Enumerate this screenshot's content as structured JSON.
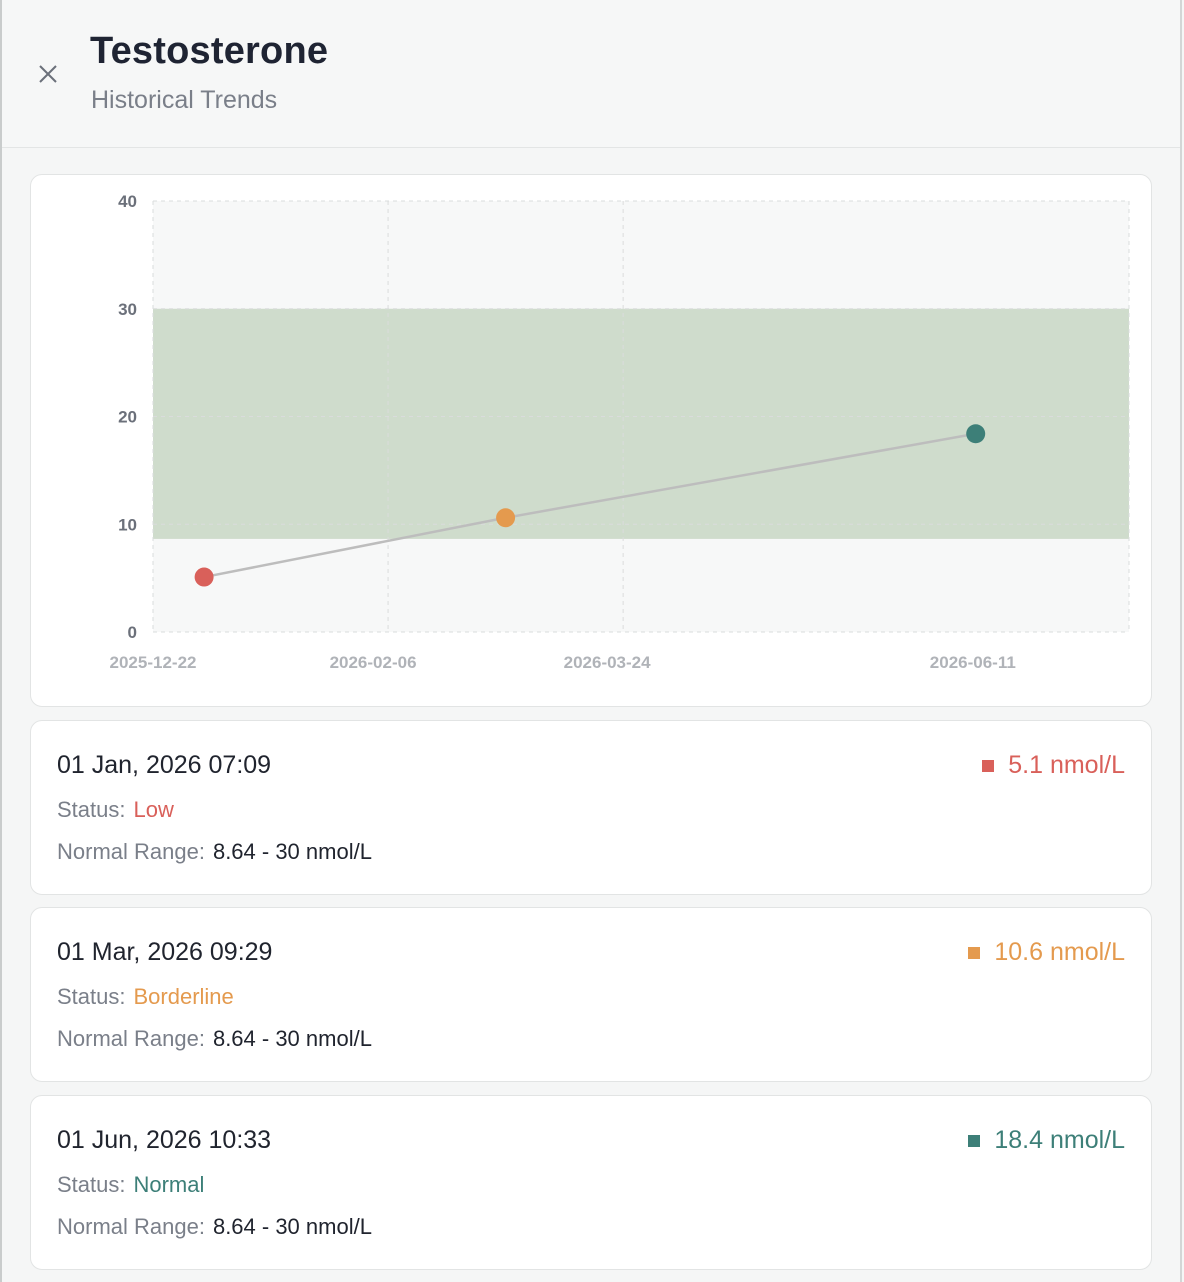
{
  "header": {
    "title": "Testosterone",
    "subtitle": "Historical Trends"
  },
  "colors": {
    "low": "#d9605a",
    "borderline": "#e49a4e",
    "normal": "#3d7f78",
    "normal_band": "#cfdccc",
    "line": "#bdbdbd"
  },
  "chart_data": {
    "type": "line",
    "ylim": [
      0,
      40
    ],
    "yticks": [
      0,
      10,
      20,
      30,
      40
    ],
    "xlim": [
      "2025-12-22",
      "2026-07-01"
    ],
    "xticks": [
      "2025-12-22",
      "2026-02-06",
      "2026-03-24",
      "2026-06-11"
    ],
    "normal_range": [
      8.64,
      30
    ],
    "grid": true,
    "points": [
      {
        "x": "2026-01-01",
        "y": 5.1,
        "status": "low"
      },
      {
        "x": "2026-03-01",
        "y": 10.6,
        "status": "borderline"
      },
      {
        "x": "2026-06-01",
        "y": 18.4,
        "status": "normal"
      }
    ]
  },
  "readings": [
    {
      "date": "01 Jan, 2026 07:09",
      "status_label": "Status:",
      "status": "Low",
      "status_key": "low",
      "range_label": "Normal Range:",
      "range": "8.64 - 30 nmol/L",
      "value": "5.1 nmol/L"
    },
    {
      "date": "01 Mar, 2026 09:29",
      "status_label": "Status:",
      "status": "Borderline",
      "status_key": "borderline",
      "range_label": "Normal Range:",
      "range": "8.64 - 30 nmol/L",
      "value": "10.6 nmol/L"
    },
    {
      "date": "01 Jun, 2026 10:33",
      "status_label": "Status:",
      "status": "Normal",
      "status_key": "normal",
      "range_label": "Normal Range:",
      "range": "8.64 - 30 nmol/L",
      "value": "18.4 nmol/L"
    }
  ]
}
